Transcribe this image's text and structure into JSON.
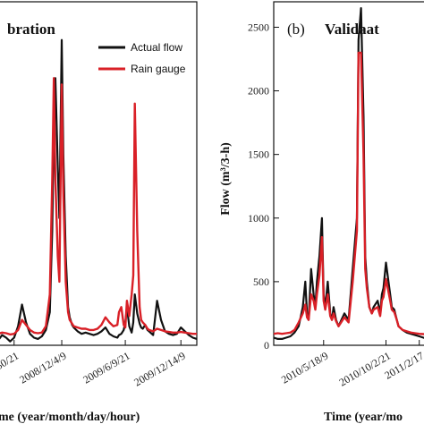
{
  "colors": {
    "actual": "#111111",
    "rain": "#d92027"
  },
  "chart_data": [
    {
      "type": "line",
      "panel_title": "bration",
      "panel_letter": "",
      "xlabel": "me (year/month/day/hour)",
      "ylabel": "",
      "x_tick_labels": [
        "30/21",
        "2008/12/4/9",
        "2009/6/9/21",
        "2009/12/14/9"
      ],
      "x_tick_positions": [
        20,
        80,
        160,
        230
      ],
      "xlim": [
        0,
        250
      ],
      "ylim": [
        0,
        2700
      ],
      "legend": {
        "position": "top-right",
        "entries": [
          "Actual flow",
          "Rain gauge"
        ]
      },
      "series": [
        {
          "name": "Actual flow",
          "x": [
            0,
            5,
            10,
            15,
            20,
            25,
            30,
            35,
            40,
            45,
            50,
            55,
            60,
            65,
            68,
            70,
            72,
            75,
            77,
            80,
            82,
            85,
            88,
            90,
            93,
            95,
            100,
            105,
            110,
            115,
            120,
            125,
            130,
            135,
            140,
            145,
            150,
            152,
            155,
            158,
            160,
            162,
            165,
            168,
            170,
            172,
            175,
            178,
            180,
            182,
            185,
            188,
            190,
            195,
            200,
            205,
            210,
            215,
            220,
            225,
            230,
            235,
            240,
            245,
            250
          ],
          "y": [
            40,
            80,
            60,
            30,
            60,
            150,
            320,
            180,
            90,
            60,
            50,
            70,
            120,
            260,
            900,
            1750,
            2100,
            1400,
            1000,
            2400,
            1500,
            700,
            300,
            220,
            160,
            140,
            110,
            90,
            100,
            90,
            80,
            90,
            110,
            140,
            90,
            70,
            60,
            80,
            90,
            120,
            180,
            300,
            150,
            100,
            180,
            400,
            250,
            170,
            140,
            130,
            160,
            120,
            110,
            80,
            350,
            200,
            110,
            90,
            80,
            90,
            140,
            110,
            80,
            60,
            50
          ]
        },
        {
          "name": "Rain gauge",
          "x": [
            0,
            5,
            10,
            15,
            20,
            25,
            30,
            35,
            40,
            45,
            50,
            55,
            60,
            65,
            68,
            70,
            72,
            75,
            77,
            80,
            82,
            85,
            88,
            90,
            93,
            95,
            100,
            105,
            110,
            115,
            120,
            125,
            130,
            135,
            140,
            145,
            150,
            152,
            155,
            158,
            160,
            162,
            165,
            168,
            170,
            172,
            175,
            178,
            180,
            182,
            185,
            188,
            190,
            195,
            200,
            205,
            210,
            215,
            220,
            225,
            230,
            235,
            240,
            245,
            250
          ],
          "y": [
            90,
            100,
            95,
            85,
            90,
            120,
            200,
            160,
            120,
            100,
            95,
            100,
            150,
            400,
            1300,
            2100,
            1300,
            700,
            500,
            2050,
            1200,
            500,
            260,
            200,
            170,
            150,
            140,
            130,
            130,
            120,
            120,
            130,
            160,
            220,
            180,
            150,
            160,
            260,
            300,
            160,
            140,
            350,
            230,
            400,
            550,
            1900,
            900,
            300,
            200,
            180,
            160,
            130,
            120,
            110,
            130,
            120,
            110,
            105,
            100,
            100,
            105,
            100,
            95,
            90,
            90
          ]
        }
      ]
    },
    {
      "type": "line",
      "panel_title": "Validaat",
      "panel_letter": "(b)",
      "xlabel": "Time (year/mo",
      "ylabel": "Flow (m³/3-h)",
      "x_tick_labels": [
        "2010/5/18/9",
        "2010/10/2/21",
        "2011/2/17"
      ],
      "x_tick_positions": [
        60,
        135,
        175
      ],
      "xlim": [
        0,
        185
      ],
      "ylim": [
        0,
        2700
      ],
      "y_ticks": [
        0,
        500,
        1000,
        1500,
        2000,
        2500
      ],
      "series": [
        {
          "name": "Actual flow",
          "x": [
            0,
            5,
            10,
            15,
            20,
            25,
            30,
            35,
            38,
            40,
            42,
            45,
            48,
            50,
            52,
            55,
            58,
            60,
            62,
            65,
            68,
            70,
            72,
            75,
            78,
            80,
            85,
            90,
            95,
            100,
            102,
            105,
            108,
            110,
            112,
            115,
            118,
            120,
            125,
            128,
            130,
            132,
            135,
            138,
            140,
            142,
            145,
            148,
            150,
            155,
            160,
            165,
            170,
            175,
            180,
            185
          ],
          "y": [
            60,
            50,
            50,
            60,
            70,
            100,
            150,
            300,
            500,
            250,
            200,
            600,
            400,
            300,
            500,
            700,
            1000,
            400,
            300,
            500,
            250,
            200,
            300,
            200,
            150,
            180,
            250,
            200,
            600,
            1000,
            2400,
            2650,
            1800,
            700,
            500,
            300,
            250,
            300,
            350,
            250,
            400,
            450,
            650,
            500,
            400,
            300,
            280,
            200,
            150,
            120,
            100,
            90,
            80,
            70,
            60,
            50
          ]
        },
        {
          "name": "Rain gauge",
          "x": [
            0,
            5,
            10,
            15,
            20,
            25,
            30,
            35,
            38,
            40,
            42,
            45,
            48,
            50,
            52,
            55,
            58,
            60,
            62,
            65,
            68,
            70,
            72,
            75,
            78,
            80,
            85,
            90,
            95,
            100,
            102,
            105,
            108,
            110,
            112,
            115,
            118,
            120,
            125,
            128,
            130,
            132,
            135,
            138,
            140,
            142,
            145,
            148,
            150,
            155,
            160,
            165,
            170,
            175,
            180,
            185
          ],
          "y": [
            90,
            95,
            90,
            95,
            100,
            120,
            180,
            250,
            320,
            220,
            200,
            400,
            350,
            280,
            400,
            550,
            850,
            350,
            280,
            400,
            230,
            200,
            250,
            190,
            150,
            170,
            220,
            180,
            500,
            900,
            2300,
            2300,
            1500,
            600,
            450,
            300,
            250,
            280,
            300,
            230,
            350,
            380,
            520,
            420,
            350,
            280,
            260,
            200,
            150,
            120,
            110,
            100,
            95,
            90,
            88,
            85
          ]
        }
      ]
    }
  ]
}
